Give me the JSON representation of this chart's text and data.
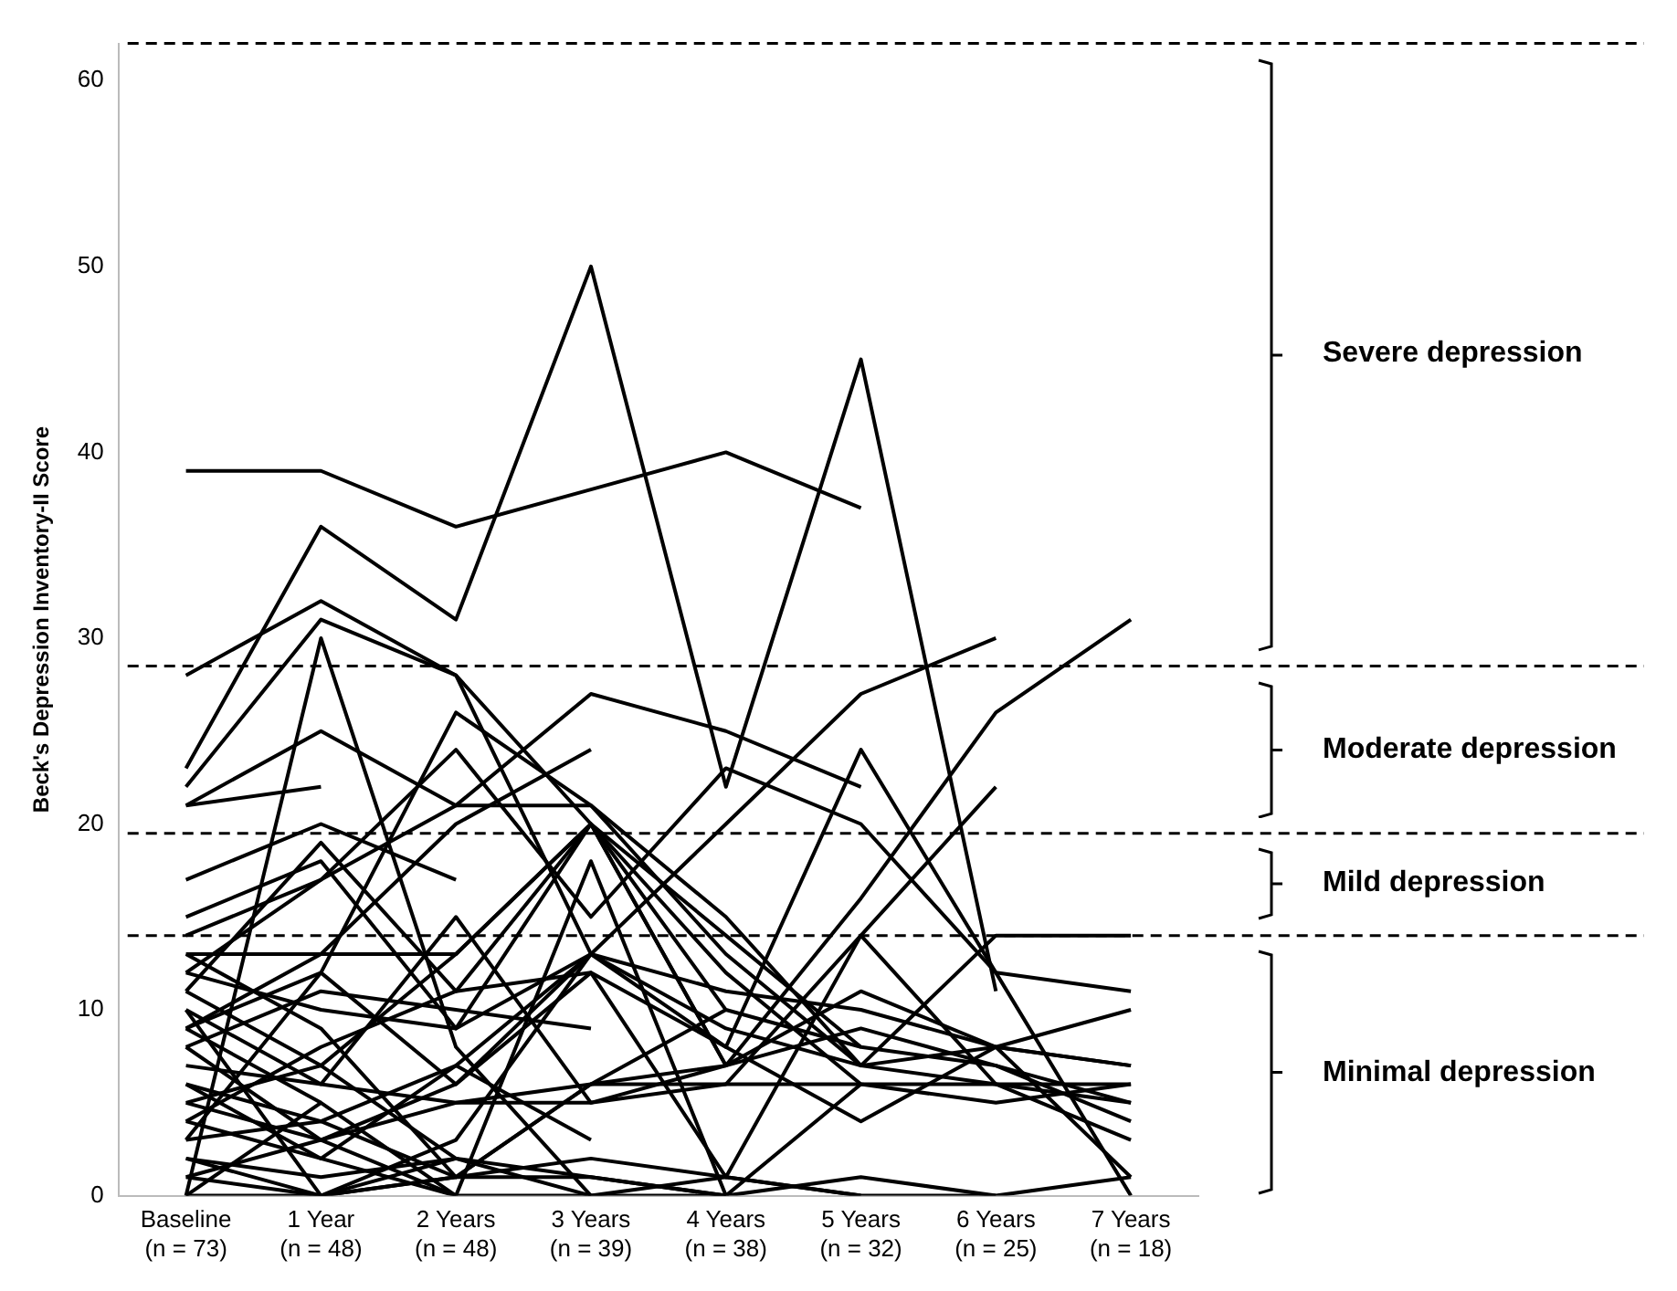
{
  "chart_data": {
    "type": "line",
    "ylabel": "Beck's Depression Inventory-II Score",
    "categories": [
      [
        "Baseline",
        "(n = 73)"
      ],
      [
        "1 Year",
        "(n = 48)"
      ],
      [
        "2 Years",
        "(n = 48)"
      ],
      [
        "3 Years",
        "(n = 39)"
      ],
      [
        "4 Years",
        "(n = 38)"
      ],
      [
        "5 Years",
        "(n = 32)"
      ],
      [
        "6 Years",
        "(n = 25)"
      ],
      [
        "7 Years",
        "(n = 18)"
      ]
    ],
    "ylim": [
      0,
      62
    ],
    "yticks": [
      0,
      10,
      20,
      30,
      40,
      50,
      60
    ],
    "grid": false,
    "legend": false,
    "marker": "none",
    "line_style": "solid",
    "ref_lines": [
      {
        "axis": "y",
        "value": 62,
        "line_style": "dashed"
      },
      {
        "axis": "y",
        "value": 28.5,
        "line_style": "dashed"
      },
      {
        "axis": "y",
        "value": 19.5,
        "line_style": "dashed"
      },
      {
        "axis": "y",
        "value": 14,
        "line_style": "dashed"
      }
    ],
    "annotations": [
      "Severe depression",
      "Moderate depression",
      "Mild depression",
      "Minimal depression"
    ],
    "series": [
      {
        "color": "#000000",
        "values": [
          39,
          39,
          36,
          38,
          40,
          37,
          null,
          null
        ]
      },
      {
        "color": "#000000",
        "values": [
          23,
          36,
          31,
          50,
          22,
          45,
          11,
          null
        ]
      },
      {
        "color": "#000000",
        "values": [
          28,
          32,
          28,
          13,
          null,
          null,
          null,
          null
        ]
      },
      {
        "color": "#000000",
        "values": [
          22,
          31,
          28,
          20,
          7,
          null,
          null,
          null
        ]
      },
      {
        "color": "#000000",
        "values": [
          0,
          30,
          8,
          0,
          null,
          null,
          null,
          null
        ]
      },
      {
        "color": "#000000",
        "values": [
          13,
          9,
          1,
          6,
          7,
          16,
          26,
          31
        ]
      },
      {
        "color": "#000000",
        "values": [
          5,
          3,
          6,
          13,
          20,
          27,
          30,
          null
        ]
      },
      {
        "color": "#000000",
        "values": [
          2,
          0,
          1,
          6,
          6,
          14,
          22,
          null
        ]
      },
      {
        "color": "#000000",
        "values": [
          14,
          17,
          21,
          27,
          25,
          22,
          null,
          null
        ]
      },
      {
        "color": "#000000",
        "values": [
          9,
          12,
          26,
          21,
          13,
          7,
          6,
          5
        ]
      },
      {
        "color": "#000000",
        "values": [
          10,
          0,
          3,
          13,
          8,
          24,
          12,
          0
        ]
      },
      {
        "color": "#000000",
        "values": [
          6,
          2,
          7,
          13,
          9,
          7,
          14,
          14
        ]
      },
      {
        "color": "#000000",
        "values": [
          17,
          20,
          17,
          null,
          null,
          null,
          null,
          null
        ]
      },
      {
        "color": "#000000",
        "values": [
          21,
          22,
          null,
          null,
          null,
          null,
          null,
          null
        ]
      },
      {
        "color": "#000000",
        "values": [
          21,
          25,
          21,
          21,
          15,
          7,
          8,
          7
        ]
      },
      {
        "color": "#000000",
        "values": [
          15,
          18,
          9,
          20,
          12,
          6,
          5,
          6
        ]
      },
      {
        "color": "#000000",
        "values": [
          13,
          13,
          13,
          20,
          7,
          11,
          8,
          1
        ]
      },
      {
        "color": "#000000",
        "values": [
          12,
          17,
          24,
          15,
          23,
          20,
          12,
          11
        ]
      },
      {
        "color": "#000000",
        "values": [
          11,
          19,
          11,
          20,
          10,
          8,
          null,
          null
        ]
      },
      {
        "color": "#000000",
        "values": [
          9,
          13,
          20,
          24,
          null,
          null,
          null,
          null
        ]
      },
      {
        "color": "#000000",
        "values": [
          3,
          12,
          6,
          12,
          1,
          14,
          6,
          3
        ]
      },
      {
        "color": "#000000",
        "values": [
          8,
          11,
          10,
          9,
          null,
          null,
          null,
          null
        ]
      },
      {
        "color": "#000000",
        "values": [
          4,
          8,
          11,
          12,
          8,
          4,
          8,
          10
        ]
      },
      {
        "color": "#000000",
        "values": [
          7,
          6,
          5,
          5,
          6,
          6,
          6,
          6
        ]
      },
      {
        "color": "#000000",
        "values": [
          5,
          7,
          2,
          1,
          0,
          1,
          0,
          1
        ]
      },
      {
        "color": "#000000",
        "values": [
          2,
          1,
          2,
          0,
          1,
          0,
          0,
          null
        ]
      },
      {
        "color": "#000000",
        "values": [
          1,
          3,
          5,
          6,
          10,
          null,
          null,
          null
        ]
      },
      {
        "color": "#000000",
        "values": [
          12,
          10,
          9,
          13,
          11,
          10,
          8,
          7
        ]
      },
      {
        "color": "#000000",
        "values": [
          3,
          4,
          1,
          2,
          1,
          0,
          null,
          null
        ]
      },
      {
        "color": "#000000",
        "values": [
          10,
          6,
          15,
          5,
          7,
          9,
          7,
          5
        ]
      },
      {
        "color": "#000000",
        "values": [
          6,
          4,
          7,
          3,
          null,
          null,
          null,
          null
        ]
      },
      {
        "color": "#000000",
        "values": [
          8,
          3,
          0,
          18,
          0,
          6,
          null,
          null
        ]
      },
      {
        "color": "#000000",
        "values": [
          0,
          0,
          1,
          1,
          0,
          null,
          null,
          null
        ]
      },
      {
        "color": "#000000",
        "values": [
          4,
          2,
          0,
          null,
          null,
          null,
          null,
          null
        ]
      },
      {
        "color": "#000000",
        "values": [
          9,
          5,
          null,
          null,
          null,
          null,
          null,
          null
        ]
      },
      {
        "color": "#000000",
        "values": [
          1,
          0,
          2,
          null,
          null,
          null,
          null,
          null
        ]
      },
      {
        "color": "#000000",
        "values": [
          11,
          7,
          13,
          20,
          14,
          8,
          7,
          4
        ]
      },
      {
        "color": "#000000",
        "values": [
          0,
          5,
          0,
          0,
          0,
          null,
          null,
          null
        ]
      }
    ]
  }
}
